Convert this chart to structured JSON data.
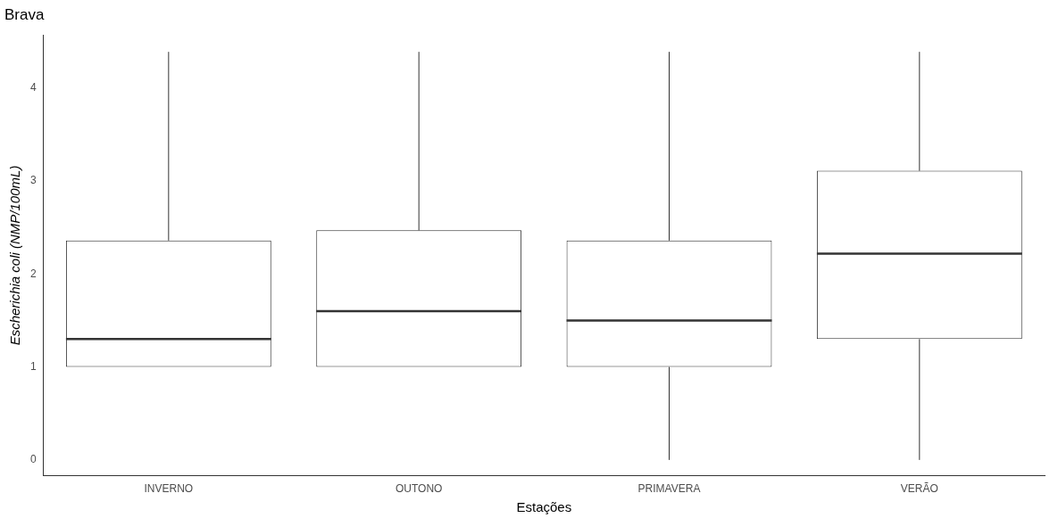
{
  "chart_data": {
    "type": "box",
    "title": "Brava",
    "xlabel": "Estações",
    "ylabel": "Escherichia coli (NMP/100mL)",
    "categories": [
      "INVERNO",
      "OUTONO",
      "PRIMAVERA",
      "VERÃO"
    ],
    "boxes": [
      {
        "low": 1,
        "q1": 1,
        "median": 1.3,
        "q3": 2.36,
        "high": 4.39
      },
      {
        "low": 1,
        "q1": 1,
        "median": 1.6,
        "q3": 2.47,
        "high": 4.39
      },
      {
        "low": 0,
        "q1": 1,
        "median": 1.5,
        "q3": 2.36,
        "high": 4.39
      },
      {
        "low": 0,
        "q1": 1.3,
        "median": 2.22,
        "q3": 3.11,
        "high": 4.39
      }
    ],
    "color": "#333333",
    "ylim": [
      -0.17,
      4.57
    ],
    "yticks": [
      0,
      1,
      2,
      3,
      4
    ],
    "grid": false,
    "legend": false
  }
}
